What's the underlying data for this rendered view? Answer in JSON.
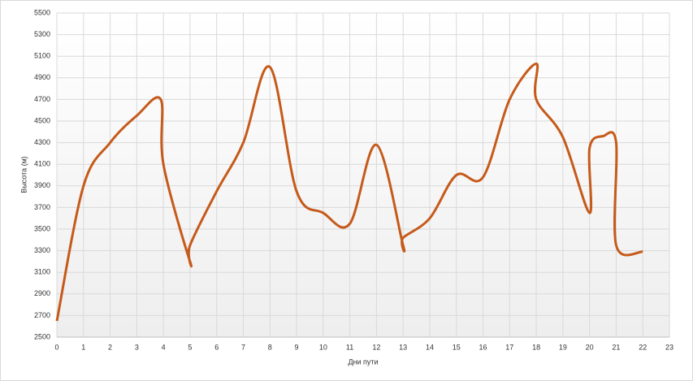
{
  "chart_data": {
    "type": "line",
    "x_label": "Дни пути",
    "y_label": "Высота (м)",
    "x": [
      0,
      1,
      2,
      3,
      3.9,
      4,
      5,
      5,
      6,
      7,
      8,
      9,
      10,
      11,
      12,
      13,
      13,
      14,
      15,
      16,
      17,
      18,
      18,
      19,
      20,
      20,
      20.5,
      21,
      21,
      22
    ],
    "series": [
      {
        "name": "Высота",
        "color": "#c55a1a",
        "values": [
          2650,
          3900,
          4300,
          4550,
          4700,
          4100,
          3200,
          3350,
          3850,
          4300,
          5000,
          3850,
          3650,
          3550,
          4280,
          3350,
          3420,
          3600,
          4000,
          3980,
          4700,
          5030,
          4700,
          4350,
          3650,
          4250,
          4360,
          4300,
          3350,
          3290
        ]
      }
    ],
    "xlim": [
      0,
      23
    ],
    "xticks": [
      0,
      1,
      2,
      3,
      4,
      5,
      6,
      7,
      8,
      9,
      10,
      11,
      12,
      13,
      14,
      15,
      16,
      17,
      18,
      19,
      20,
      21,
      22,
      23
    ],
    "ylim": [
      2500,
      5500
    ],
    "yticks": [
      2500,
      2700,
      2900,
      3100,
      3300,
      3500,
      3700,
      3900,
      4100,
      4300,
      4500,
      4700,
      4900,
      5100,
      5300,
      5500
    ],
    "grid": true
  }
}
